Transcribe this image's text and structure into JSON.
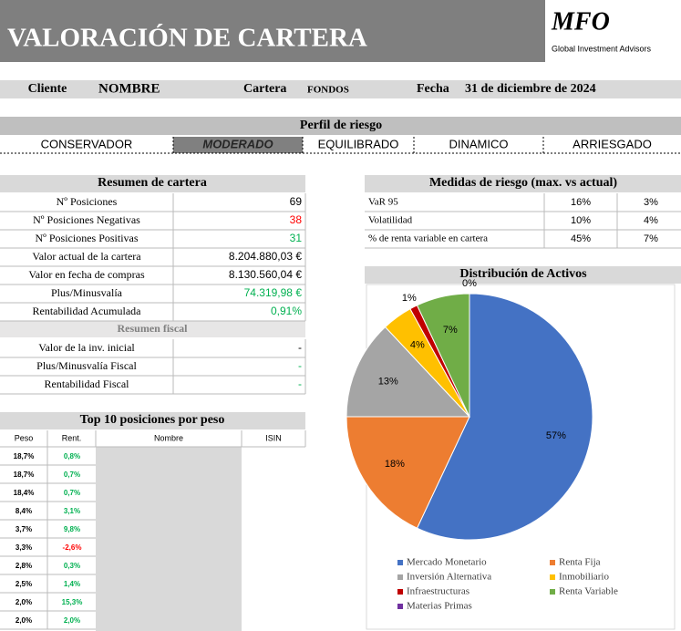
{
  "header": {
    "title": "VALORACIÓN DE CARTERA",
    "logo": "MFO",
    "logo_subtitle": "Global Investment Advisors"
  },
  "client_row": {
    "client_label": "Cliente",
    "client": "NOMBRE",
    "portfolio_label": "Cartera",
    "portfolio": "FONDOS",
    "date_label": "Fecha",
    "date": "31 de diciembre de 2024"
  },
  "risk_profile": {
    "title": "Perfil de riesgo",
    "options": [
      "CONSERVADOR",
      "MODERADO",
      "EQUILIBRADO",
      "DINAMICO",
      "ARRIESGADO"
    ],
    "selected": 1
  },
  "summary": {
    "title": "Resumen de cartera",
    "rows": [
      {
        "label": "Nº Posiciones",
        "value": "69"
      },
      {
        "label": "Nº Posiciones Negativas",
        "value": "38",
        "color": "#ff0000"
      },
      {
        "label": "Nº Posiciones Positivas",
        "value": "31",
        "color": "#00b050"
      },
      {
        "label": "Valor actual de la cartera",
        "value": "8.204.880,03 €"
      },
      {
        "label": "Valor en fecha de compras",
        "value": "8.130.560,04 €"
      },
      {
        "label": "Plus/Minusvalía",
        "value": "74.319,98 €",
        "color": "#00b050"
      },
      {
        "label": "Rentabilidad Acumulada",
        "value": "0,91%",
        "color": "#00b050"
      }
    ],
    "fiscal_title": "Resumen fiscal",
    "fiscal_rows": [
      {
        "label": "Valor de la inv. inicial",
        "value": "-"
      },
      {
        "label": "Plus/Minusvalía Fiscal",
        "value": "-",
        "color": "#00b050"
      },
      {
        "label": "Rentabilidad Fiscal",
        "value": "-",
        "color": "#00b050"
      }
    ]
  },
  "risk_measures": {
    "title": "Medidas de riesgo (max. vs actual)",
    "rows": [
      [
        "VaR 95",
        "16%",
        "3%"
      ],
      [
        "Volatilidad",
        "10%",
        "4%"
      ],
      [
        "% de renta variable en cartera",
        "45%",
        "7%"
      ]
    ]
  },
  "top10": {
    "title": "Top 10 posiciones por peso",
    "columns": [
      "Peso",
      "Rent.",
      "Nombre",
      "ISIN"
    ],
    "positive_color": "#00b050",
    "negative_color": "#ff0000",
    "rows": [
      [
        "18,7%",
        "0,8%"
      ],
      [
        "18,7%",
        "0,7%"
      ],
      [
        "18,4%",
        "0,7%"
      ],
      [
        "8,4%",
        "3,1%"
      ],
      [
        "3,7%",
        "9,8%"
      ],
      [
        "3,3%",
        "-2,6%"
      ],
      [
        "2,8%",
        "0,3%"
      ],
      [
        "2,5%",
        "1,4%"
      ],
      [
        "2,0%",
        "15,3%"
      ],
      [
        "2,0%",
        "2,0%"
      ]
    ]
  },
  "chart_data": {
    "type": "pie",
    "title": "Distribución de Activos",
    "categories": [
      "Mercado Monetario",
      "Renta Fija",
      "Inversión Alternativa",
      "Inmobiliario",
      "Infraestructuras",
      "Renta Variable",
      "Materias Primas"
    ],
    "values": [
      57,
      18,
      13,
      4,
      1,
      7,
      0
    ],
    "value_labels": [
      "57%",
      "18%",
      "13%",
      "4%",
      "1%",
      "7%",
      "0%"
    ],
    "colors": [
      "#4472c4",
      "#ed7d31",
      "#a5a5a5",
      "#ffc000",
      "#c00000",
      "#70ad47",
      "#7030a0"
    ],
    "legend": "bottom"
  }
}
